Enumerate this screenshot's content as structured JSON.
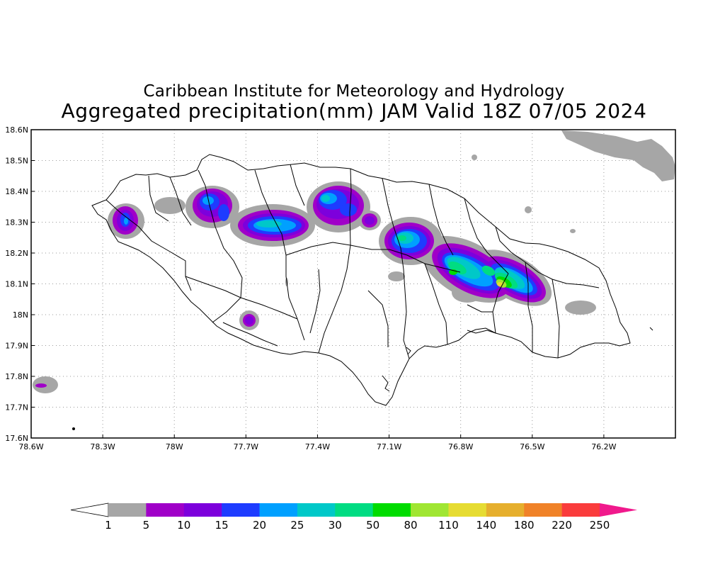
{
  "header": {
    "line1": "Caribbean Institute for Meteorology and Hydrology",
    "line2": "Aggregated precipitation(mm) JAM Valid 18Z 07/05 2024"
  },
  "map": {
    "lat_ticks": [
      "18.6N",
      "18.5N",
      "18.4N",
      "18.3N",
      "18.2N",
      "18.1N",
      "18N",
      "17.9N",
      "17.8N",
      "17.7N",
      "17.6N"
    ],
    "lon_ticks": [
      "78.6W",
      "78.3W",
      "78W",
      "77.7W",
      "77.4W",
      "77.1W",
      "76.8W",
      "76.5W",
      "76.2W"
    ],
    "lat_range": [
      17.6,
      18.6
    ],
    "lon_range": [
      -78.6,
      -75.9
    ],
    "grid": "dotted",
    "outline_color": "#000000"
  },
  "colorbar": {
    "labels": [
      "1",
      "5",
      "10",
      "15",
      "20",
      "25",
      "30",
      "50",
      "80",
      "110",
      "140",
      "180",
      "220",
      "250"
    ],
    "colors": [
      "#a6a6a6",
      "#a000c8",
      "#7d00dc",
      "#1e3cff",
      "#00a0ff",
      "#00c8c8",
      "#00dc82",
      "#00dc00",
      "#a0e632",
      "#e6dc32",
      "#e6af2d",
      "#f08228",
      "#fa3c3c",
      "#f0198c"
    ],
    "under_color": "#ffffff",
    "over_color": "#f0198c"
  }
}
